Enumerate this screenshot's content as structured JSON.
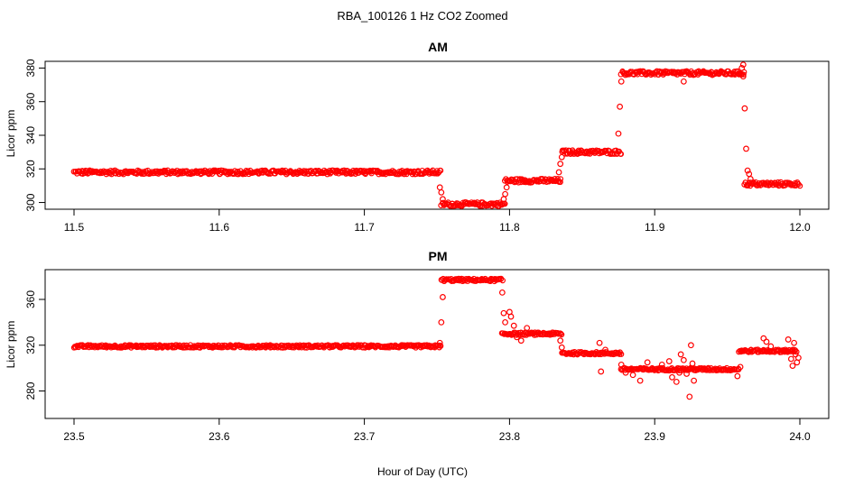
{
  "figure": {
    "title": "RBA_100126  1 Hz CO2 Zoomed",
    "xlabel": "Hour of Day (UTC)"
  },
  "chart_data": [
    {
      "type": "scatter",
      "title": "AM",
      "xlabel": "",
      "ylabel": "Licor ppm",
      "xlim": [
        11.5,
        12.0
      ],
      "ylim": [
        296,
        384
      ],
      "x_ticks": [
        "11.5",
        "11.6",
        "11.7",
        "11.8",
        "11.9",
        "12.0"
      ],
      "y_ticks": [
        "300",
        "320",
        "340",
        "360",
        "380"
      ],
      "marker": "open-circle",
      "color": "#ff0000",
      "grid": false,
      "segments": [
        {
          "x_start": 11.5,
          "x_end": 11.753,
          "y": 318
        },
        {
          "x_start": 11.753,
          "x_end": 11.797,
          "y": 299
        },
        {
          "x_start": 11.797,
          "x_end": 11.836,
          "y": 313
        },
        {
          "x_start": 11.836,
          "x_end": 11.877,
          "y": 330
        },
        {
          "x_start": 11.877,
          "x_end": 11.962,
          "y": 377
        },
        {
          "x_start": 11.962,
          "x_end": 12.0,
          "y": 311
        }
      ],
      "points": [
        [
          11.752,
          309
        ],
        [
          11.753,
          306
        ],
        [
          11.754,
          302
        ],
        [
          11.796,
          302
        ],
        [
          11.797,
          305
        ],
        [
          11.798,
          309
        ],
        [
          11.834,
          318
        ],
        [
          11.835,
          323
        ],
        [
          11.836,
          327
        ],
        [
          11.875,
          341
        ],
        [
          11.876,
          357
        ],
        [
          11.877,
          372
        ],
        [
          11.92,
          372
        ],
        [
          11.96,
          380
        ],
        [
          11.961,
          382
        ],
        [
          11.961,
          375
        ],
        [
          11.962,
          356
        ],
        [
          11.963,
          332
        ],
        [
          11.964,
          319
        ],
        [
          11.965,
          317
        ],
        [
          11.966,
          314
        ]
      ]
    },
    {
      "type": "scatter",
      "title": "PM",
      "xlabel": "",
      "ylabel": "Licor ppm",
      "xlim": [
        23.5,
        24.0
      ],
      "ylim": [
        256,
        386
      ],
      "x_ticks": [
        "23.5",
        "23.6",
        "23.7",
        "23.8",
        "23.9",
        "24.0"
      ],
      "y_ticks": [
        "280",
        "320",
        "360"
      ],
      "marker": "open-circle",
      "color": "#ff0000",
      "grid": false,
      "segments": [
        {
          "x_start": 23.5,
          "x_end": 23.753,
          "y": 319
        },
        {
          "x_start": 23.753,
          "x_end": 23.795,
          "y": 377
        },
        {
          "x_start": 23.795,
          "x_end": 23.836,
          "y": 330
        },
        {
          "x_start": 23.836,
          "x_end": 23.877,
          "y": 313
        },
        {
          "x_start": 23.877,
          "x_end": 23.958,
          "y": 299
        },
        {
          "x_start": 23.958,
          "x_end": 23.998,
          "y": 315
        }
      ],
      "points": [
        [
          23.752,
          322
        ],
        [
          23.753,
          340
        ],
        [
          23.754,
          362
        ],
        [
          23.795,
          366
        ],
        [
          23.796,
          348
        ],
        [
          23.797,
          340
        ],
        [
          23.8,
          349
        ],
        [
          23.801,
          345
        ],
        [
          23.803,
          337
        ],
        [
          23.805,
          327
        ],
        [
          23.808,
          324
        ],
        [
          23.812,
          335
        ],
        [
          23.835,
          324
        ],
        [
          23.836,
          318
        ],
        [
          23.862,
          322
        ],
        [
          23.863,
          297
        ],
        [
          23.866,
          316
        ],
        [
          23.875,
          313
        ],
        [
          23.877,
          303
        ],
        [
          23.88,
          296
        ],
        [
          23.885,
          294
        ],
        [
          23.89,
          289
        ],
        [
          23.895,
          305
        ],
        [
          23.905,
          303
        ],
        [
          23.91,
          306
        ],
        [
          23.912,
          292
        ],
        [
          23.915,
          288
        ],
        [
          23.917,
          296
        ],
        [
          23.918,
          312
        ],
        [
          23.92,
          307
        ],
        [
          23.922,
          295
        ],
        [
          23.924,
          275
        ],
        [
          23.925,
          320
        ],
        [
          23.926,
          304
        ],
        [
          23.927,
          289
        ],
        [
          23.957,
          293
        ],
        [
          23.959,
          301
        ],
        [
          23.975,
          326
        ],
        [
          23.977,
          323
        ],
        [
          23.98,
          319
        ],
        [
          23.99,
          316
        ],
        [
          23.992,
          325
        ],
        [
          23.994,
          308
        ],
        [
          23.995,
          302
        ],
        [
          23.996,
          322
        ],
        [
          23.997,
          312
        ],
        [
          23.998,
          305
        ],
        [
          23.999,
          309
        ]
      ]
    }
  ]
}
